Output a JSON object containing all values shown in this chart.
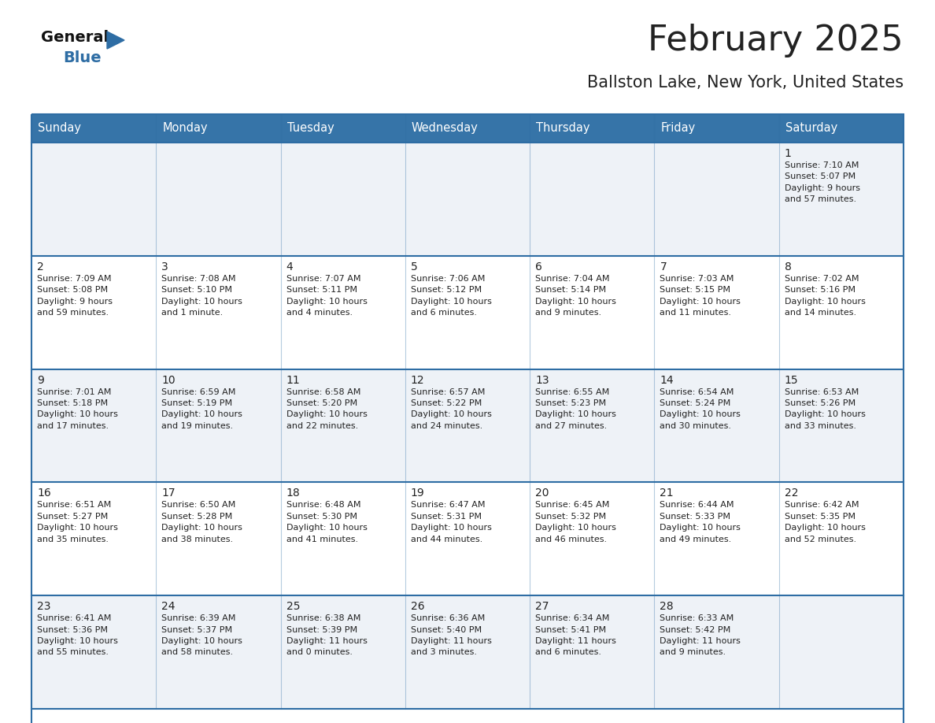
{
  "title": "February 2025",
  "subtitle": "Ballston Lake, New York, United States",
  "header_color": "#3674a8",
  "header_text_color": "#ffffff",
  "cell_bg_light": "#eef2f7",
  "cell_bg_white": "#ffffff",
  "border_color": "#2e6da4",
  "row_line_color": "#2e6da4",
  "days_of_week": [
    "Sunday",
    "Monday",
    "Tuesday",
    "Wednesday",
    "Thursday",
    "Friday",
    "Saturday"
  ],
  "weeks": [
    [
      {
        "day": "",
        "info": ""
      },
      {
        "day": "",
        "info": ""
      },
      {
        "day": "",
        "info": ""
      },
      {
        "day": "",
        "info": ""
      },
      {
        "day": "",
        "info": ""
      },
      {
        "day": "",
        "info": ""
      },
      {
        "day": "1",
        "info": "Sunrise: 7:10 AM\nSunset: 5:07 PM\nDaylight: 9 hours\nand 57 minutes."
      }
    ],
    [
      {
        "day": "2",
        "info": "Sunrise: 7:09 AM\nSunset: 5:08 PM\nDaylight: 9 hours\nand 59 minutes."
      },
      {
        "day": "3",
        "info": "Sunrise: 7:08 AM\nSunset: 5:10 PM\nDaylight: 10 hours\nand 1 minute."
      },
      {
        "day": "4",
        "info": "Sunrise: 7:07 AM\nSunset: 5:11 PM\nDaylight: 10 hours\nand 4 minutes."
      },
      {
        "day": "5",
        "info": "Sunrise: 7:06 AM\nSunset: 5:12 PM\nDaylight: 10 hours\nand 6 minutes."
      },
      {
        "day": "6",
        "info": "Sunrise: 7:04 AM\nSunset: 5:14 PM\nDaylight: 10 hours\nand 9 minutes."
      },
      {
        "day": "7",
        "info": "Sunrise: 7:03 AM\nSunset: 5:15 PM\nDaylight: 10 hours\nand 11 minutes."
      },
      {
        "day": "8",
        "info": "Sunrise: 7:02 AM\nSunset: 5:16 PM\nDaylight: 10 hours\nand 14 minutes."
      }
    ],
    [
      {
        "day": "9",
        "info": "Sunrise: 7:01 AM\nSunset: 5:18 PM\nDaylight: 10 hours\nand 17 minutes."
      },
      {
        "day": "10",
        "info": "Sunrise: 6:59 AM\nSunset: 5:19 PM\nDaylight: 10 hours\nand 19 minutes."
      },
      {
        "day": "11",
        "info": "Sunrise: 6:58 AM\nSunset: 5:20 PM\nDaylight: 10 hours\nand 22 minutes."
      },
      {
        "day": "12",
        "info": "Sunrise: 6:57 AM\nSunset: 5:22 PM\nDaylight: 10 hours\nand 24 minutes."
      },
      {
        "day": "13",
        "info": "Sunrise: 6:55 AM\nSunset: 5:23 PM\nDaylight: 10 hours\nand 27 minutes."
      },
      {
        "day": "14",
        "info": "Sunrise: 6:54 AM\nSunset: 5:24 PM\nDaylight: 10 hours\nand 30 minutes."
      },
      {
        "day": "15",
        "info": "Sunrise: 6:53 AM\nSunset: 5:26 PM\nDaylight: 10 hours\nand 33 minutes."
      }
    ],
    [
      {
        "day": "16",
        "info": "Sunrise: 6:51 AM\nSunset: 5:27 PM\nDaylight: 10 hours\nand 35 minutes."
      },
      {
        "day": "17",
        "info": "Sunrise: 6:50 AM\nSunset: 5:28 PM\nDaylight: 10 hours\nand 38 minutes."
      },
      {
        "day": "18",
        "info": "Sunrise: 6:48 AM\nSunset: 5:30 PM\nDaylight: 10 hours\nand 41 minutes."
      },
      {
        "day": "19",
        "info": "Sunrise: 6:47 AM\nSunset: 5:31 PM\nDaylight: 10 hours\nand 44 minutes."
      },
      {
        "day": "20",
        "info": "Sunrise: 6:45 AM\nSunset: 5:32 PM\nDaylight: 10 hours\nand 46 minutes."
      },
      {
        "day": "21",
        "info": "Sunrise: 6:44 AM\nSunset: 5:33 PM\nDaylight: 10 hours\nand 49 minutes."
      },
      {
        "day": "22",
        "info": "Sunrise: 6:42 AM\nSunset: 5:35 PM\nDaylight: 10 hours\nand 52 minutes."
      }
    ],
    [
      {
        "day": "23",
        "info": "Sunrise: 6:41 AM\nSunset: 5:36 PM\nDaylight: 10 hours\nand 55 minutes."
      },
      {
        "day": "24",
        "info": "Sunrise: 6:39 AM\nSunset: 5:37 PM\nDaylight: 10 hours\nand 58 minutes."
      },
      {
        "day": "25",
        "info": "Sunrise: 6:38 AM\nSunset: 5:39 PM\nDaylight: 11 hours\nand 0 minutes."
      },
      {
        "day": "26",
        "info": "Sunrise: 6:36 AM\nSunset: 5:40 PM\nDaylight: 11 hours\nand 3 minutes."
      },
      {
        "day": "27",
        "info": "Sunrise: 6:34 AM\nSunset: 5:41 PM\nDaylight: 11 hours\nand 6 minutes."
      },
      {
        "day": "28",
        "info": "Sunrise: 6:33 AM\nSunset: 5:42 PM\nDaylight: 11 hours\nand 9 minutes."
      },
      {
        "day": "",
        "info": ""
      }
    ]
  ],
  "logo_triangle_color": "#2e6da4",
  "text_color": "#222222",
  "info_font_size": 8.0,
  "day_font_size": 10,
  "header_font_size": 10.5,
  "title_font_size": 32,
  "subtitle_font_size": 15
}
